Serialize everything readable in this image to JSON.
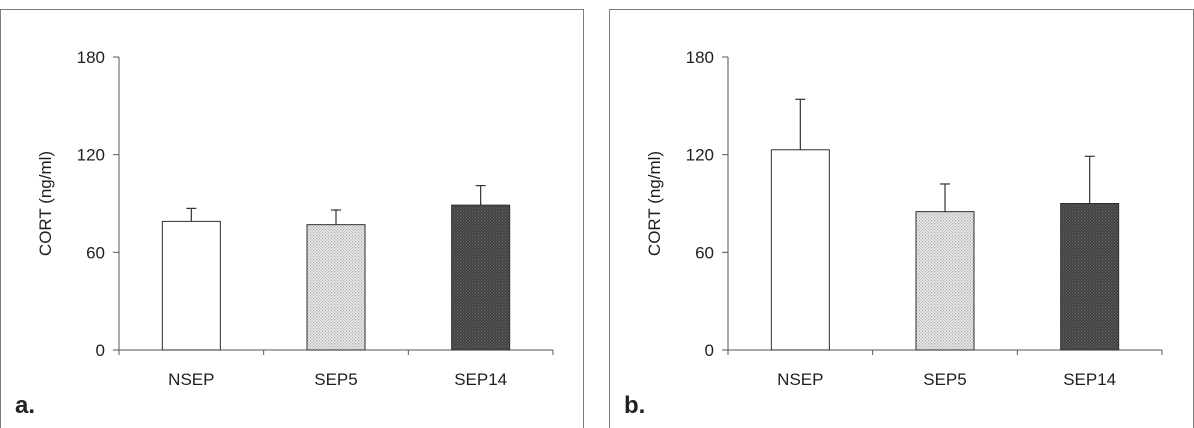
{
  "colors": {
    "frame": "#7c7c7c",
    "axis": "#555555",
    "text": "#1e1e1e",
    "nsep_fill": "#ffffff",
    "sep5_fill": "#dcdcdc",
    "sep14_fill": "#4a4a4a"
  },
  "chart_data": [
    {
      "type": "bar",
      "panel_label": "a.",
      "categories": [
        "NSEP",
        "SEP5",
        "SEP14"
      ],
      "values": [
        79,
        77,
        89
      ],
      "error_bars": [
        8,
        9,
        12
      ],
      "ylabel": "CORT (ng/ml)",
      "xlabel": "",
      "ylim": [
        0,
        180
      ],
      "yticks": [
        0,
        60,
        120,
        180
      ],
      "grid": false,
      "bar_fills": [
        "#ffffff",
        "#dcdcdc",
        "#4a4a4a"
      ]
    },
    {
      "type": "bar",
      "panel_label": "b.",
      "categories": [
        "NSEP",
        "SEP5",
        "SEP14"
      ],
      "values": [
        123,
        85,
        90
      ],
      "error_bars": [
        31,
        17,
        29
      ],
      "ylabel": "CORT (ng/ml)",
      "xlabel": "",
      "ylim": [
        0,
        180
      ],
      "yticks": [
        0,
        60,
        120,
        180
      ],
      "grid": false,
      "bar_fills": [
        "#ffffff",
        "#dcdcdc",
        "#4a4a4a"
      ]
    }
  ]
}
